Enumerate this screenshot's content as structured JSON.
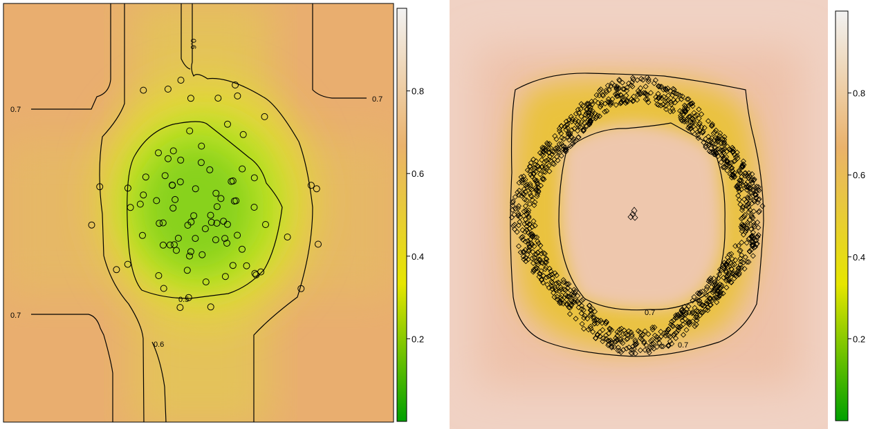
{
  "chart_data": [
    {
      "type": "heatmap",
      "title": "",
      "xlabel": "",
      "ylabel": "",
      "colorbar": {
        "range": [
          0,
          1
        ],
        "ticks": [
          "0.2",
          "0.4",
          "0.6",
          "0.8"
        ],
        "colors": [
          "#00a000",
          "#e6e600",
          "#eab26b",
          "#f2f2f2"
        ]
      },
      "contour_labels": [
        "0.7",
        "0.7",
        "0.7",
        "0.6",
        "0.6",
        "0.5"
      ],
      "overlay": "scatter-circles",
      "point_count": 90
    },
    {
      "type": "heatmap",
      "title": "",
      "xlabel": "",
      "ylabel": "",
      "colorbar": {
        "range": [
          0,
          1
        ],
        "ticks": [
          "0.2",
          "0.4",
          "0.6",
          "0.8"
        ],
        "colors": [
          "#00a000",
          "#e6e600",
          "#eab26b",
          "#f2f2f2"
        ]
      },
      "contour_labels": [
        "0.7",
        "0.7"
      ],
      "overlay": "scatter-diamonds-ring",
      "point_count": 1200
    }
  ]
}
